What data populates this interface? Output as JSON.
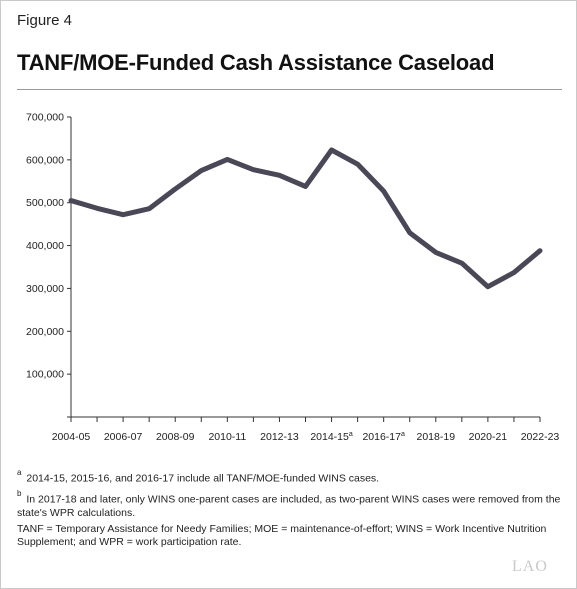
{
  "figure": {
    "label": "Figure 4",
    "title": "TANF/MOE-Funded Cash Assistance Caseload"
  },
  "chart_data": {
    "type": "line",
    "title": "TANF/MOE-Funded Cash Assistance Caseload",
    "xlabel": "",
    "ylabel": "",
    "ylim": [
      0,
      700000
    ],
    "yticks": [
      0,
      100000,
      200000,
      300000,
      400000,
      500000,
      600000,
      700000
    ],
    "ytick_labels": [
      "",
      "100,000",
      "200,000",
      "300,000",
      "400,000",
      "500,000",
      "600,000",
      "700,000"
    ],
    "x": [
      "2004-05",
      "2005-06",
      "2006-07",
      "2007-08",
      "2008-09",
      "2009-10",
      "2010-11",
      "2011-12",
      "2012-13",
      "2013-14",
      "2014-15",
      "2015-16",
      "2016-17",
      "2017-18",
      "2018-19",
      "2019-20",
      "2020-21",
      "2021-22",
      "2022-23"
    ],
    "xtick_labels": [
      "2004-05",
      "",
      "2006-07",
      "",
      "2008-09",
      "",
      "2010-11",
      "",
      "2012-13",
      "",
      "2014-15",
      "",
      "2016-17",
      "",
      "2018-19",
      "",
      "2020-21",
      "",
      "2022-23"
    ],
    "xtick_sup": [
      "",
      "",
      "",
      "",
      "",
      "",
      "",
      "",
      "",
      "",
      "a",
      "",
      "a",
      "",
      "",
      "",
      "",
      "",
      ""
    ],
    "series": [
      {
        "values": [
          505000,
          487000,
          472000,
          486000,
          532000,
          575000,
          601000,
          577000,
          564000,
          538000,
          623000,
          590000,
          527000,
          430000,
          384000,
          359000,
          304000,
          337000,
          388000
        ]
      }
    ],
    "grid": false,
    "line_color": "#4a4756"
  },
  "notes": {
    "note1_marker": "a",
    "note1_text": "2014-15, 2015-16, and 2016-17 include all TANF/MOE-funded WINS cases.",
    "note2_marker": "b",
    "note2_text": "In 2017-18 and later, only WINS one-parent cases are included, as two-parent WINS cases were removed from the state's WPR calculations.",
    "note3_text": "TANF = Temporary Assistance for Needy Families; MOE = maintenance-of-effort; WINS = Work Incentive Nutrition Supplement; and WPR = work participation rate."
  },
  "logo": "LAO"
}
